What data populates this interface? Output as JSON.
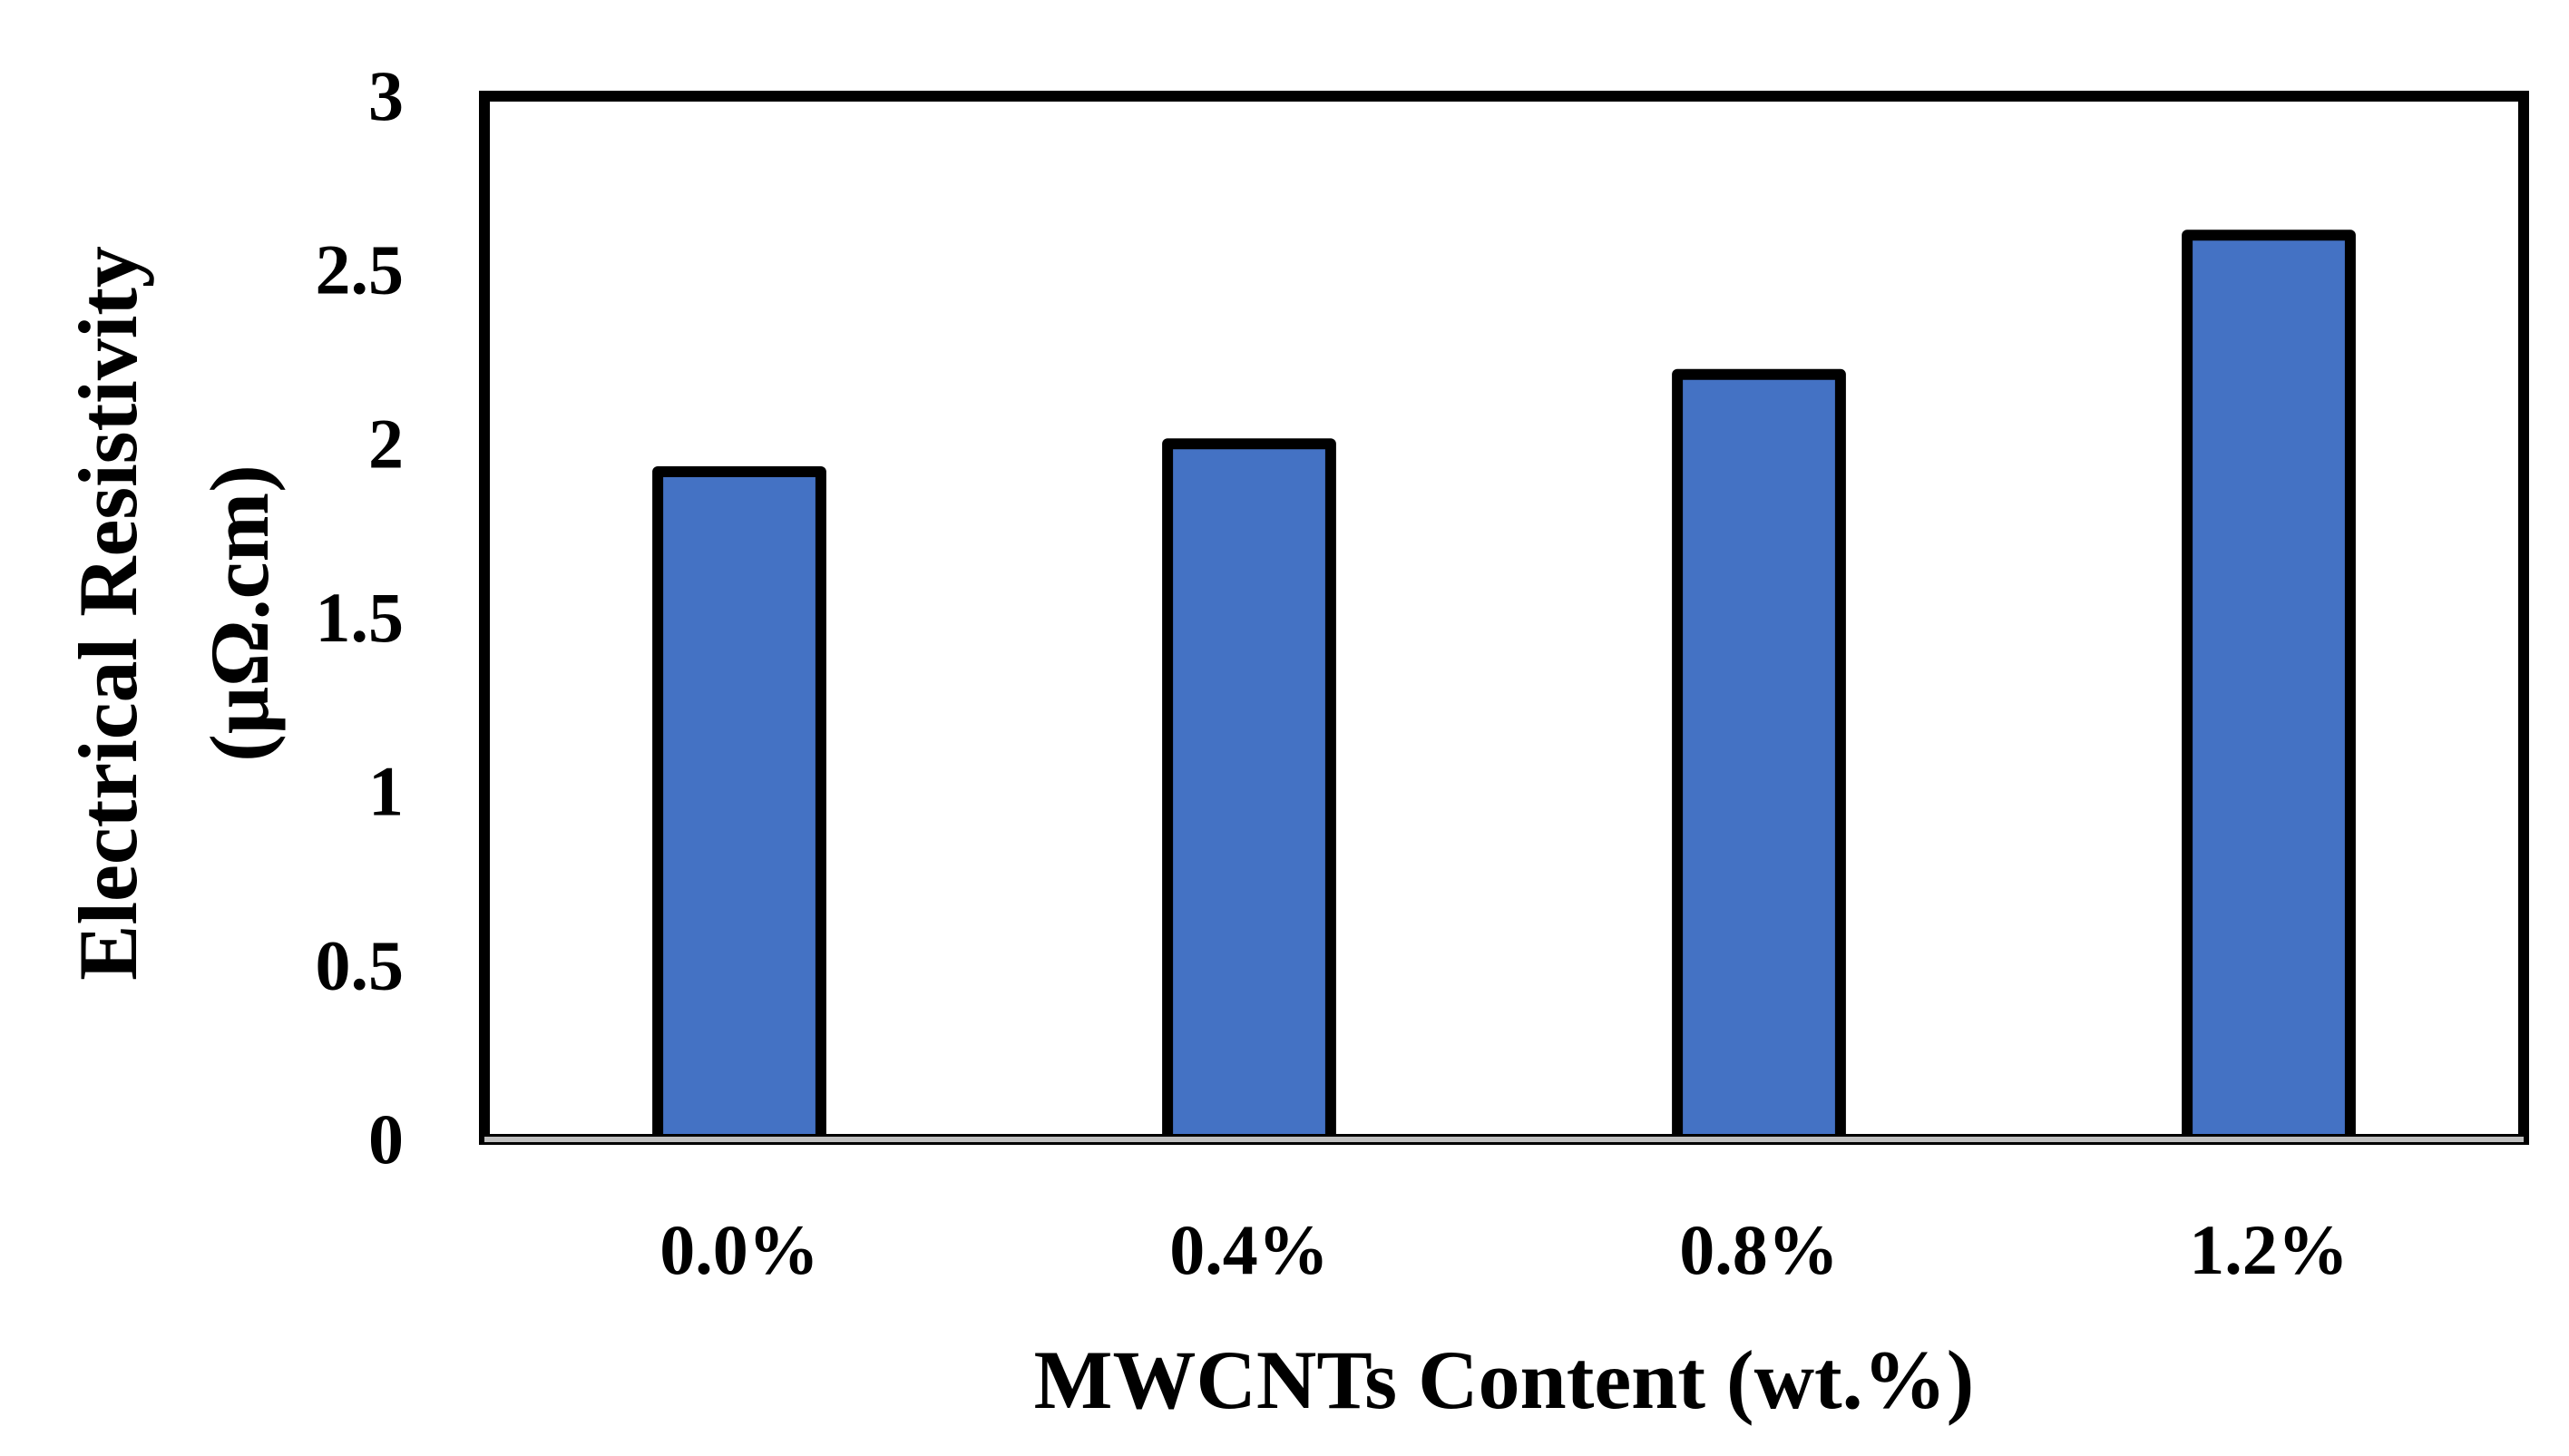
{
  "chart_data": {
    "type": "bar",
    "categories": [
      "0.0%",
      "0.4%",
      "0.8%",
      "1.2%"
    ],
    "values": [
      1.92,
      2.0,
      2.2,
      2.6
    ],
    "xlabel": "MWCNTs Content (wt.%)",
    "ylabel_line1": "Electrical Resistivity",
    "ylabel_line2": "(μΩ.cm)",
    "ylim": [
      0,
      3
    ],
    "yticks": [
      "0",
      "0.5",
      "1",
      "1.5",
      "2",
      "2.5",
      "3"
    ],
    "grid": false,
    "legend": "none",
    "bar_color": "#4472C4",
    "bar_edge_color": "#000000",
    "frame_color": "#000000",
    "baseline_color": "#BFBFBF"
  }
}
